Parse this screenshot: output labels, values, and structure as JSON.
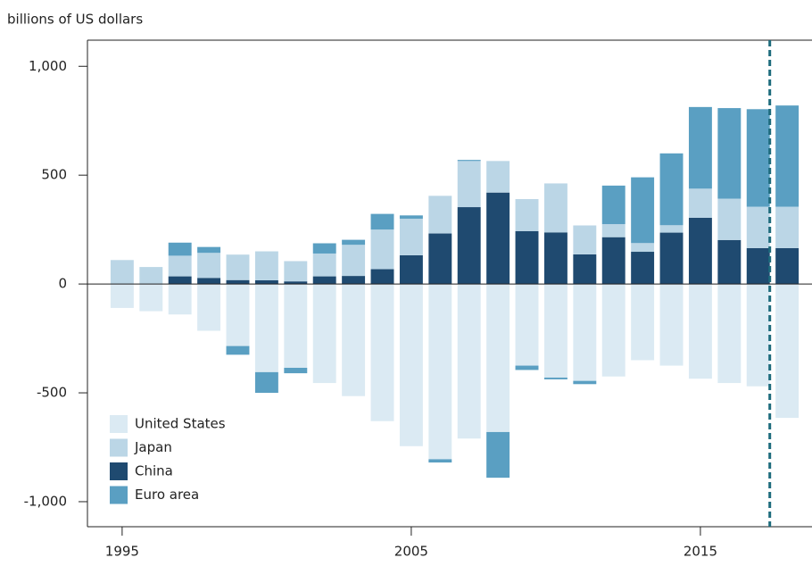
{
  "chart_data": {
    "type": "bar",
    "y_axis_label": "billions of US dollars",
    "x": [
      1995,
      1996,
      1997,
      1998,
      1999,
      2000,
      2001,
      2002,
      2003,
      2004,
      2005,
      2006,
      2007,
      2008,
      2009,
      2010,
      2011,
      2012,
      2013,
      2014,
      2015,
      2016,
      2017,
      2018
    ],
    "series": [
      {
        "name": "United States",
        "color": "#dbeaf3",
        "values": [
          -110,
          -125,
          -140,
          -215,
          -285,
          -405,
          -385,
          -455,
          -515,
          -630,
          -745,
          -805,
          -710,
          -680,
          -375,
          -430,
          -445,
          -425,
          -350,
          -375,
          -435,
          -455,
          -470,
          -615
        ]
      },
      {
        "name": "Japan",
        "color": "#bbd6e6",
        "values": [
          110,
          78,
          95,
          115,
          117,
          133,
          93,
          105,
          143,
          182,
          168,
          173,
          212,
          145,
          147,
          225,
          133,
          60,
          40,
          34,
          134,
          190,
          190,
          190
        ]
      },
      {
        "name": "China",
        "color": "#1f4a70",
        "values": [
          0,
          0,
          35,
          28,
          18,
          17,
          12,
          35,
          37,
          68,
          132,
          232,
          353,
          420,
          243,
          237,
          136,
          215,
          148,
          236,
          304,
          202,
          165,
          165
        ]
      },
      {
        "name": "Euro area",
        "color": "#5a9fc2",
        "values": [
          0,
          0,
          60,
          27,
          -40,
          -95,
          -25,
          47,
          23,
          72,
          15,
          -15,
          5,
          -210,
          -20,
          -8,
          -15,
          177,
          302,
          330,
          375,
          416,
          448,
          465
        ]
      }
    ],
    "xlim": [
      1993.8,
      2018.86
    ],
    "xticks": [
      1995,
      2005,
      2015
    ],
    "ylim": [
      -1115,
      1120
    ],
    "yticks": [
      {
        "value": 1000,
        "label": "1,000"
      },
      500,
      0,
      -500,
      {
        "value": -1000,
        "label": "-1,000"
      }
    ],
    "forecast_line_x": 2017.4,
    "forecast_line_color": "#1d6b7c",
    "legend": "lower left"
  }
}
